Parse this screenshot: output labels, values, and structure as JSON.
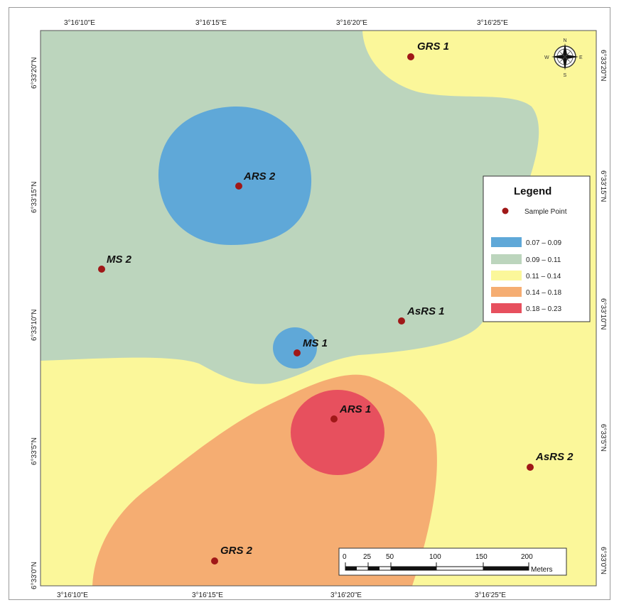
{
  "coordinates": {
    "top": [
      "3°16'10\"E",
      "3°16'15\"E",
      "3°16'20\"E",
      "3°16'25\"E"
    ],
    "bottom": [
      "3°16'10\"E",
      "3°16'15\"E",
      "3°16'20\"E",
      "3°16'25\"E"
    ],
    "left": [
      "6°33'20\"N",
      "6°33'15\"N",
      "6°33'10\"N",
      "6°33'5\"N",
      "6°33'0\"N"
    ],
    "right": [
      "6°33'20\"N",
      "6°33'15\"N",
      "6°33'10\"N",
      "6°33'5\"N",
      "6°33'0\"N"
    ]
  },
  "sample_points": [
    {
      "id": "grs1",
      "label": "GRS 1"
    },
    {
      "id": "ars2",
      "label": "ARS 2"
    },
    {
      "id": "ms2",
      "label": "MS 2"
    },
    {
      "id": "asrs1",
      "label": "AsRS 1"
    },
    {
      "id": "ms1",
      "label": "MS 1"
    },
    {
      "id": "ars1",
      "label": "ARS 1"
    },
    {
      "id": "asrs2",
      "label": "AsRS 2"
    },
    {
      "id": "grs2",
      "label": "GRS 2"
    }
  ],
  "legend": {
    "title": "Legend",
    "point_label": "Sample Point",
    "classes": [
      {
        "range": "0.07 – 0.09",
        "color": "#5fa8d8"
      },
      {
        "range": "0.09 – 0.11",
        "color": "#bcd5bd"
      },
      {
        "range": "0.11 – 0.14",
        "color": "#fbf79a"
      },
      {
        "range": "0.14 – 0.18",
        "color": "#f5ad72"
      },
      {
        "range": "0.18 – 0.23",
        "color": "#e7505e"
      }
    ]
  },
  "scale_bar": {
    "ticks": [
      "0",
      "25",
      "50",
      "100",
      "150",
      "200"
    ],
    "unit": "Meters"
  },
  "compass": {
    "n": "N",
    "s": "S",
    "e": "E",
    "w": "W"
  },
  "colors": {
    "point": "#a01818"
  }
}
